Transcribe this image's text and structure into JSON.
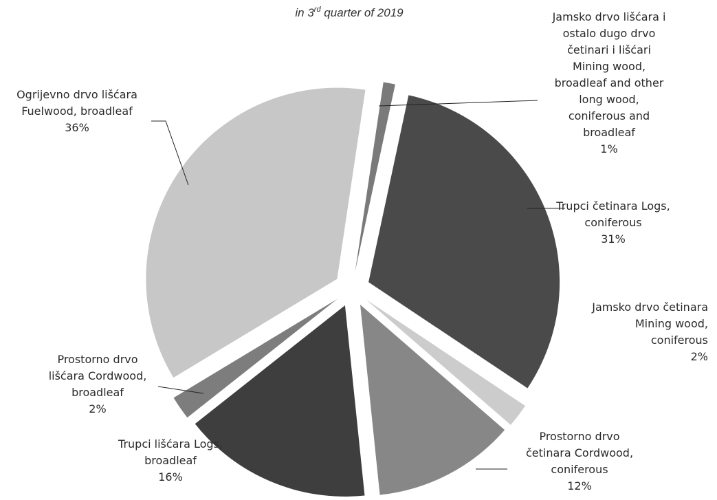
{
  "chart_data": {
    "type": "pie",
    "title_fragment": "in 3rd quarter of 2019",
    "legend": "none",
    "slices": [
      {
        "lines": [
          "Jamsko drvo lišćara i",
          "ostalo dugo drvo",
          "četinari i lišćari",
          "Mining wood,",
          "broadleaf and other",
          "long wood,",
          "coniferous and",
          "broadleaf"
        ],
        "value": 1,
        "percent_label": "1%",
        "color": "#7a7a7a"
      },
      {
        "lines": [
          "Trupci četinara Logs,",
          "coniferous"
        ],
        "value": 31,
        "percent_label": "31%",
        "color": "#4a4a4a"
      },
      {
        "lines": [
          "Jamsko drvo četinara",
          "Mining wood,",
          "coniferous"
        ],
        "value": 2,
        "percent_label": "2%",
        "color": "#cccccc"
      },
      {
        "lines": [
          "Prostorno drvo",
          "četinara Cordwood,",
          "coniferous"
        ],
        "value": 12,
        "percent_label": "12%",
        "color": "#878787"
      },
      {
        "lines": [
          "Trupci lišćara Logs,",
          "broadleaf"
        ],
        "value": 16,
        "percent_label": "16%",
        "color": "#3e3e3e"
      },
      {
        "lines": [
          "Prostorno drvo",
          "lišćara Cordwood,",
          "broadleaf"
        ],
        "value": 2,
        "percent_label": "2%",
        "color": "#7d7d7d"
      },
      {
        "lines": [
          "Ogrijevno drvo lišćara",
          "Fuelwood, broadleaf"
        ],
        "value": 36,
        "percent_label": "36%",
        "color": "#c7c7c7"
      }
    ]
  }
}
